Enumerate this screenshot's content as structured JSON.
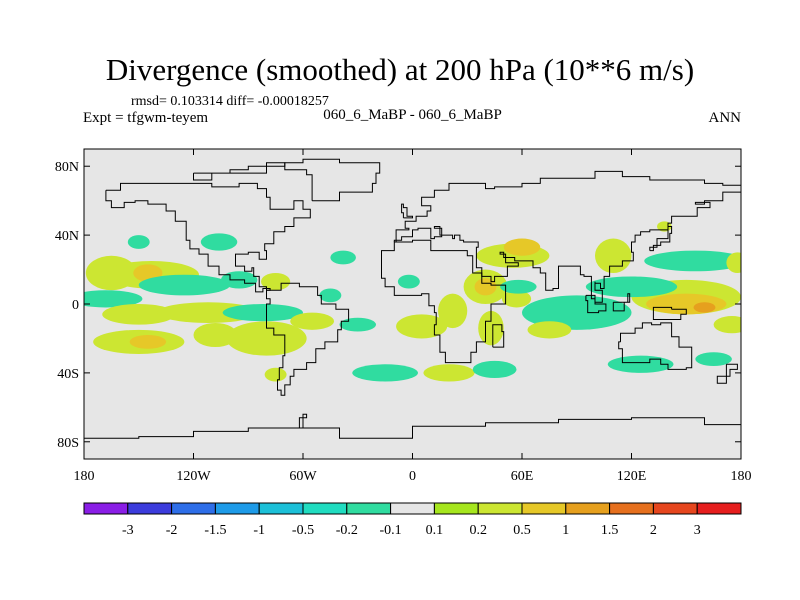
{
  "chart_data": {
    "type": "filled-contour-map",
    "title": "Divergence (smoothed) at 200 hPa (10**6 m/s)",
    "stats_text": "rmsd= 0.103314 diff= -0.00018257",
    "expt_label": "Expt = tfgwm-teyem",
    "case_label": "060_6_MaBP - 060_6_MaBP",
    "season": "ANN",
    "x_ticks": [
      "180",
      "120W",
      "60W",
      "0",
      "60E",
      "120E",
      "180"
    ],
    "y_ticks": [
      "80N",
      "40N",
      "0",
      "40S",
      "80S"
    ],
    "xlim": [
      -180,
      180
    ],
    "ylim": [
      -90,
      90
    ],
    "colorbar": {
      "labels": [
        "-3",
        "-2",
        "-1.5",
        "-1",
        "-0.5",
        "-0.2",
        "-0.1",
        "0.1",
        "0.2",
        "0.5",
        "1",
        "1.5",
        "2",
        "3"
      ],
      "colors": [
        "#8a1ee6",
        "#3c3cdc",
        "#2e6ee8",
        "#1e9be8",
        "#1cc0d8",
        "#20dcc0",
        "#30dca0",
        "#e6e6e6",
        "#a6e61e",
        "#cce632",
        "#e6c828",
        "#e6a01e",
        "#e6701e",
        "#e6461e",
        "#e61e1e"
      ]
    },
    "regions": [
      {
        "lon": -165,
        "lat": 18,
        "rx": 14,
        "ry": 10,
        "value": 0.3
      },
      {
        "lon": -143,
        "lat": 17,
        "rx": 26,
        "ry": 8,
        "value": 0.3
      },
      {
        "lon": -145,
        "lat": 18,
        "rx": 8,
        "ry": 5,
        "value": 0.6
      },
      {
        "lon": -168,
        "lat": 3,
        "rx": 20,
        "ry": 5,
        "value": -0.15
      },
      {
        "lon": -125,
        "lat": 11,
        "rx": 25,
        "ry": 6,
        "value": -0.15
      },
      {
        "lon": -150,
        "lat": -6,
        "rx": 20,
        "ry": 6,
        "value": 0.3
      },
      {
        "lon": -112,
        "lat": -5,
        "rx": 28,
        "ry": 6,
        "value": 0.3
      },
      {
        "lon": -150,
        "lat": -22,
        "rx": 25,
        "ry": 7,
        "value": 0.3
      },
      {
        "lon": -145,
        "lat": -22,
        "rx": 10,
        "ry": 4,
        "value": 0.6
      },
      {
        "lon": -108,
        "lat": -18,
        "rx": 12,
        "ry": 7,
        "value": 0.3
      },
      {
        "lon": -80,
        "lat": -20,
        "rx": 22,
        "ry": 10,
        "value": 0.3
      },
      {
        "lon": -82,
        "lat": -5,
        "rx": 22,
        "ry": 5,
        "value": -0.15
      },
      {
        "lon": -75,
        "lat": 13,
        "rx": 8,
        "ry": 5,
        "value": 0.3
      },
      {
        "lon": -95,
        "lat": 14,
        "rx": 10,
        "ry": 5,
        "value": -0.15
      },
      {
        "lon": -106,
        "lat": 36,
        "rx": 10,
        "ry": 5,
        "value": -0.15
      },
      {
        "lon": -150,
        "lat": 36,
        "rx": 6,
        "ry": 4,
        "value": -0.15
      },
      {
        "lon": -38,
        "lat": 27,
        "rx": 7,
        "ry": 4,
        "value": -0.15
      },
      {
        "lon": -45,
        "lat": 5,
        "rx": 6,
        "ry": 4,
        "value": -0.15
      },
      {
        "lon": -30,
        "lat": -12,
        "rx": 10,
        "ry": 4,
        "value": -0.15
      },
      {
        "lon": -55,
        "lat": -10,
        "rx": 12,
        "ry": 5,
        "value": 0.3
      },
      {
        "lon": -15,
        "lat": -40,
        "rx": 18,
        "ry": 5,
        "value": -0.15
      },
      {
        "lon": -2,
        "lat": 13,
        "rx": 6,
        "ry": 4,
        "value": -0.15
      },
      {
        "lon": 5,
        "lat": -13,
        "rx": 14,
        "ry": 7,
        "value": 0.3
      },
      {
        "lon": 22,
        "lat": -4,
        "rx": 8,
        "ry": 10,
        "value": 0.3
      },
      {
        "lon": 40,
        "lat": 10,
        "rx": 12,
        "ry": 10,
        "value": 0.3
      },
      {
        "lon": 40,
        "lat": 10,
        "rx": 6,
        "ry": 5,
        "value": 0.6
      },
      {
        "lon": 43,
        "lat": -14,
        "rx": 7,
        "ry": 10,
        "value": 0.3
      },
      {
        "lon": 57,
        "lat": 3,
        "rx": 8,
        "ry": 5,
        "value": 0.3
      },
      {
        "lon": 55,
        "lat": 28,
        "rx": 20,
        "ry": 7,
        "value": 0.3
      },
      {
        "lon": 60,
        "lat": 33,
        "rx": 10,
        "ry": 5,
        "value": 0.6
      },
      {
        "lon": 58,
        "lat": 10,
        "rx": 10,
        "ry": 4,
        "value": -0.15
      },
      {
        "lon": 20,
        "lat": -40,
        "rx": 14,
        "ry": 5,
        "value": 0.3
      },
      {
        "lon": 45,
        "lat": -38,
        "rx": 12,
        "ry": 5,
        "value": -0.15
      },
      {
        "lon": 90,
        "lat": -5,
        "rx": 30,
        "ry": 10,
        "value": -0.15
      },
      {
        "lon": 75,
        "lat": -15,
        "rx": 12,
        "ry": 5,
        "value": 0.3
      },
      {
        "lon": 150,
        "lat": 4,
        "rx": 30,
        "ry": 10,
        "value": 0.3
      },
      {
        "lon": 150,
        "lat": 0,
        "rx": 22,
        "ry": 6,
        "value": 0.6
      },
      {
        "lon": 160,
        "lat": -2,
        "rx": 6,
        "ry": 3,
        "value": 1.2
      },
      {
        "lon": 120,
        "lat": 10,
        "rx": 25,
        "ry": 6,
        "value": -0.15
      },
      {
        "lon": 155,
        "lat": 25,
        "rx": 28,
        "ry": 6,
        "value": -0.15
      },
      {
        "lon": 110,
        "lat": 28,
        "rx": 10,
        "ry": 10,
        "value": 0.3
      },
      {
        "lon": 125,
        "lat": -35,
        "rx": 18,
        "ry": 5,
        "value": -0.15
      },
      {
        "lon": 165,
        "lat": -32,
        "rx": 10,
        "ry": 4,
        "value": -0.15
      },
      {
        "lon": 175,
        "lat": -12,
        "rx": 10,
        "ry": 5,
        "value": 0.3
      },
      {
        "lon": 138,
        "lat": 45,
        "rx": 4,
        "ry": 3,
        "value": 0.3
      },
      {
        "lon": 178,
        "lat": 24,
        "rx": 6,
        "ry": 6,
        "value": 0.3
      },
      {
        "lon": -75,
        "lat": -41,
        "rx": 6,
        "ry": 4,
        "value": 0.3
      }
    ]
  }
}
